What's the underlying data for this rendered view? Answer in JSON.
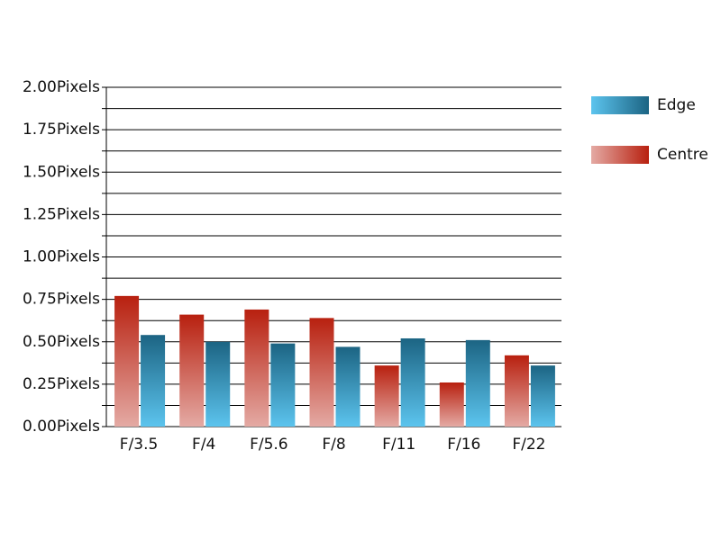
{
  "chart_data": {
    "type": "bar",
    "categories": [
      "F/3.5",
      "F/4",
      "F/5.6",
      "F/8",
      "F/11",
      "F/16",
      "F/22"
    ],
    "series": [
      {
        "name": "Centre",
        "color": "#b8200f",
        "values": [
          0.77,
          0.66,
          0.69,
          0.64,
          0.36,
          0.26,
          0.42
        ]
      },
      {
        "name": "Edge",
        "color": "#1c6483",
        "values": [
          0.54,
          0.5,
          0.49,
          0.47,
          0.52,
          0.51,
          0.36
        ]
      }
    ],
    "legend_order": [
      "Edge",
      "Centre"
    ],
    "ylim": [
      0,
      2
    ],
    "yticks": [
      {
        "value": 0,
        "label": "0.00Pixels"
      },
      {
        "value": 0.25,
        "label": "0.25Pixels"
      },
      {
        "value": 0.5,
        "label": "0.50Pixels"
      },
      {
        "value": 0.75,
        "label": "0.75Pixels"
      },
      {
        "value": 1,
        "label": "1.00Pixels"
      },
      {
        "value": 1.25,
        "label": "1.25Pixels"
      },
      {
        "value": 1.5,
        "label": "1.50Pixels"
      },
      {
        "value": 1.75,
        "label": "1.75Pixels"
      },
      {
        "value": 2,
        "label": "2.00Pixels"
      }
    ],
    "yminorticks": [
      0.125,
      0.375,
      0.625,
      0.875,
      1.125,
      1.375,
      1.625,
      1.875
    ],
    "grid": true
  }
}
